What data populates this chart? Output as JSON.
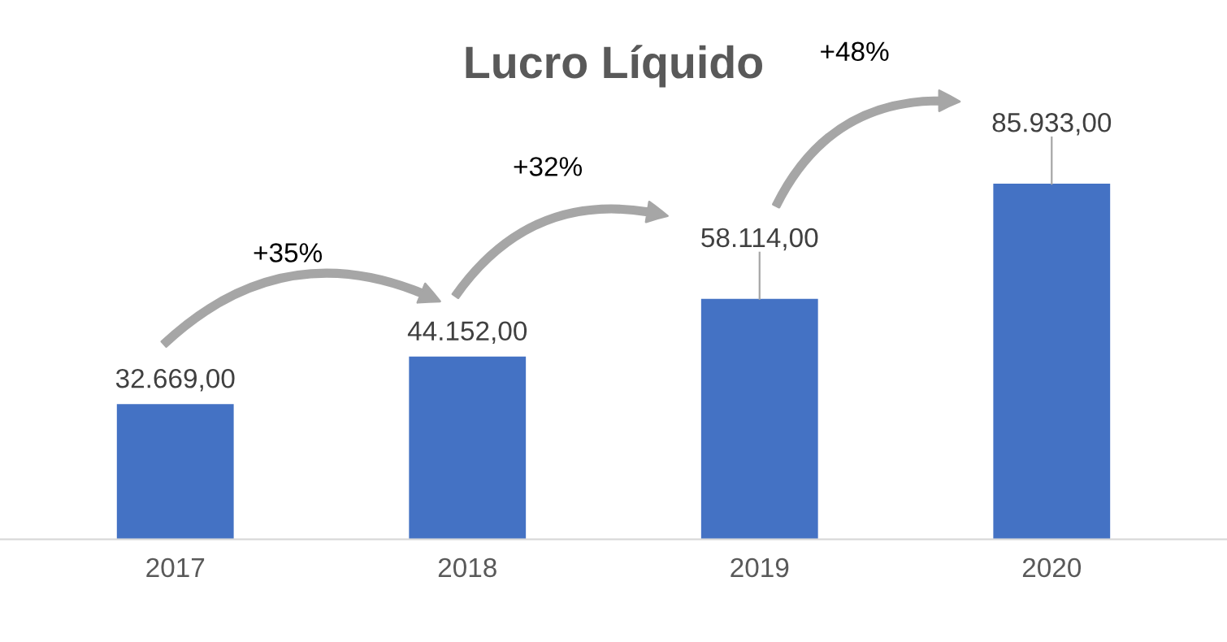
{
  "chart_data": {
    "type": "bar",
    "title": "Lucro Líquido",
    "categories": [
      "2017",
      "2018",
      "2019",
      "2020"
    ],
    "values": [
      32669,
      44152,
      58114,
      85933
    ],
    "value_labels": [
      "32.669,00",
      "44.152,00",
      "58.114,00",
      "85.933,00"
    ],
    "color": "#4472c4",
    "annotations": [
      "+35%",
      "+32%",
      "+48%"
    ],
    "grid": false
  }
}
